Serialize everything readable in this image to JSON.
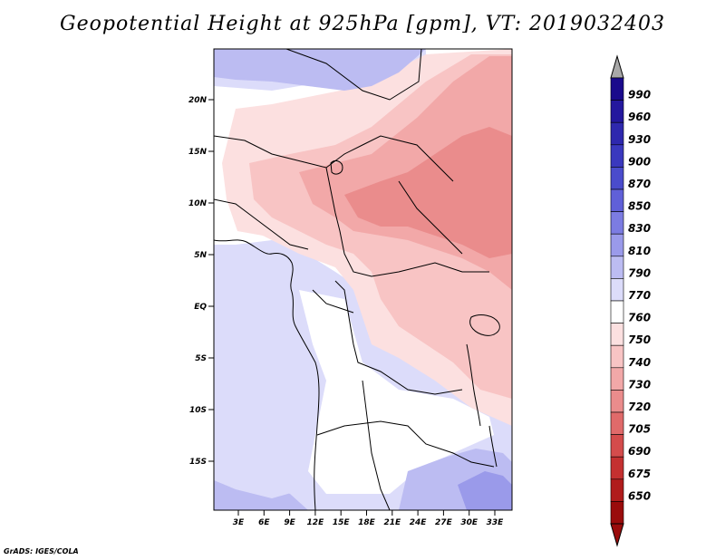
{
  "title": "Geopotential Height at 925hPa [gpm], VT: 2019032403",
  "credit": "GrADS: IGES/COLA",
  "map": {
    "lat_ticks": [
      {
        "label": "20N",
        "value": 20
      },
      {
        "label": "15N",
        "value": 15
      },
      {
        "label": "10N",
        "value": 10
      },
      {
        "label": "5N",
        "value": 5
      },
      {
        "label": "EQ",
        "value": 0
      },
      {
        "label": "5S",
        "value": -5
      },
      {
        "label": "10S",
        "value": -10
      },
      {
        "label": "15S",
        "value": -15
      }
    ],
    "lon_ticks": [
      {
        "label": "3E",
        "value": 3
      },
      {
        "label": "6E",
        "value": 6
      },
      {
        "label": "9E",
        "value": 9
      },
      {
        "label": "12E",
        "value": 12
      },
      {
        "label": "15E",
        "value": 15
      },
      {
        "label": "18E",
        "value": 18
      },
      {
        "label": "21E",
        "value": 21
      },
      {
        "label": "24E",
        "value": 24
      },
      {
        "label": "27E",
        "value": 27
      },
      {
        "label": "30E",
        "value": 30
      },
      {
        "label": "33E",
        "value": 33
      }
    ]
  },
  "colorbar": {
    "labels": [
      "990",
      "960",
      "930",
      "900",
      "870",
      "850",
      "830",
      "810",
      "790",
      "770",
      "760",
      "750",
      "740",
      "730",
      "720",
      "705",
      "690",
      "675",
      "650"
    ],
    "colors": [
      "#1a0a8c",
      "#24189e",
      "#2e28ae",
      "#3a38be",
      "#4a4ccc",
      "#6060d8",
      "#7c7ce2",
      "#9a9aea",
      "#bcbcf2",
      "#dcdcfa",
      "#ffffff",
      "#fce0e0",
      "#f8c4c4",
      "#f2a8a8",
      "#ea8c8c",
      "#e06a6a",
      "#d44c4c",
      "#c43030",
      "#b01c1c",
      "#9a0c0c"
    ],
    "top_arrow_color": "#a8a8a8",
    "bottom_arrow_color": "#9a0c0c"
  },
  "field_colors": {
    "h770": "#dcdcfa",
    "h790": "#bcbcf2",
    "h810": "#9a9aea",
    "h760": "#ffffff",
    "h750": "#fce0e0",
    "h740": "#f8c4c4",
    "h730": "#f2a8a8",
    "h720": "#ea8c8c"
  }
}
